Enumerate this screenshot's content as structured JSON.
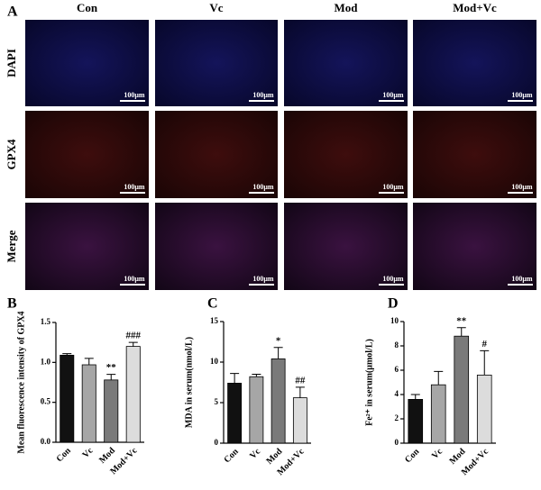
{
  "panel_a": {
    "label": "A",
    "columns": [
      "Con",
      "Vc",
      "Mod",
      "Mod+Vc"
    ],
    "rows": [
      "DAPI",
      "GPX4",
      "Merge"
    ],
    "scale_bar": "100μm"
  },
  "chart_data": [
    {
      "type": "bar",
      "panel": "B",
      "ylabel": "Mean fluorescence intensity of GPX4",
      "categories": [
        "Con",
        "Vc",
        "Mod",
        "Mod+Vc"
      ],
      "values": [
        1.09,
        0.97,
        0.78,
        1.2
      ],
      "errors": [
        0.02,
        0.08,
        0.07,
        0.05
      ],
      "annotations": [
        null,
        null,
        "**",
        "###"
      ],
      "colors": [
        "#111111",
        "#a6a6a6",
        "#7a7a7a",
        "#dcdcdc"
      ],
      "ylim": [
        0,
        1.5
      ],
      "yticks": [
        {
          "value": 0,
          "label": "0.0"
        },
        0.5,
        {
          "value": 1,
          "label": "1.0"
        },
        1.5
      ]
    },
    {
      "type": "bar",
      "panel": "C",
      "ylabel": "MDA in serum(nmol/L)",
      "categories": [
        "Con",
        "Vc",
        "Mod",
        "Mod+Vc"
      ],
      "values": [
        7.4,
        8.2,
        10.4,
        5.6
      ],
      "errors": [
        1.2,
        0.3,
        1.4,
        1.3
      ],
      "annotations": [
        null,
        null,
        "*",
        "##"
      ],
      "colors": [
        "#111111",
        "#a6a6a6",
        "#7a7a7a",
        "#dcdcdc"
      ],
      "ylim": [
        0,
        15
      ],
      "yticks": [
        0,
        5,
        10,
        15
      ]
    },
    {
      "type": "bar",
      "panel": "D",
      "ylabel": "Fe²⁺ in serum(μmol/L)",
      "categories": [
        "Con",
        "Vc",
        "Mod",
        "Mod+Vc"
      ],
      "values": [
        3.6,
        4.8,
        8.8,
        5.6
      ],
      "errors": [
        0.4,
        1.1,
        0.7,
        2.0
      ],
      "annotations": [
        null,
        null,
        "**",
        "#"
      ],
      "colors": [
        "#111111",
        "#a6a6a6",
        "#7a7a7a",
        "#dcdcdc"
      ],
      "ylim": [
        0,
        10
      ],
      "yticks": [
        0,
        2,
        4,
        6,
        8,
        10
      ]
    }
  ]
}
